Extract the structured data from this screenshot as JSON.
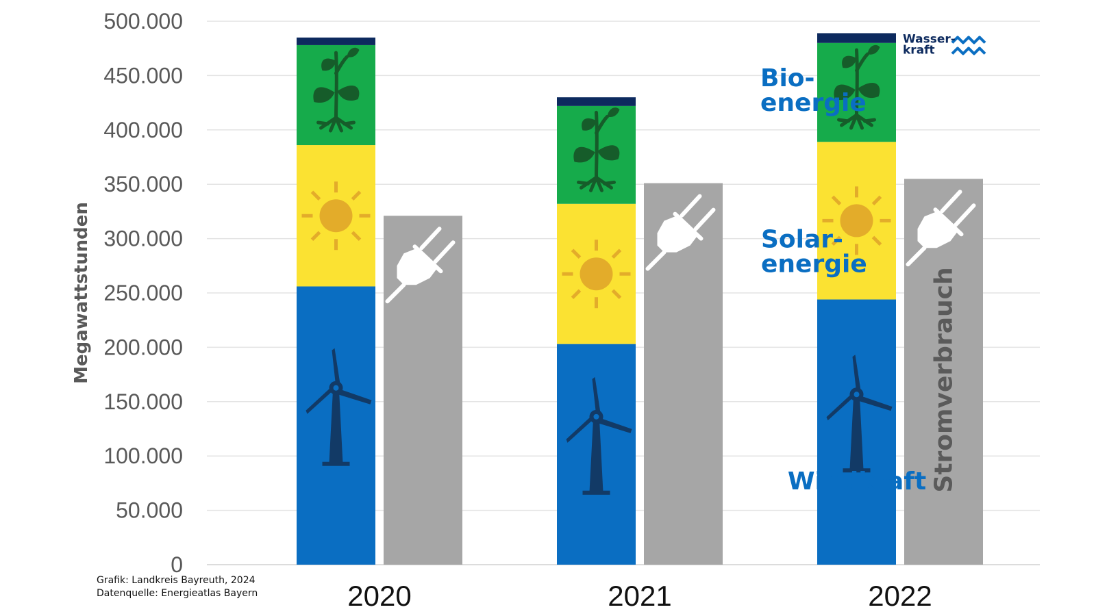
{
  "chart_data": {
    "type": "bar",
    "categories": [
      "2020",
      "2021",
      "2022"
    ],
    "ylabel": "Megawattstunden",
    "ylim": [
      0,
      500000
    ],
    "yticks": [
      0,
      50000,
      100000,
      150000,
      200000,
      250000,
      300000,
      350000,
      400000,
      450000,
      500000
    ],
    "ytick_labels": [
      "0",
      "50.000",
      "100.000",
      "150.000",
      "200.000",
      "250.000",
      "300.000",
      "350.000",
      "400.000",
      "450.000",
      "500.000"
    ],
    "grid": true,
    "stacked_series": [
      {
        "name": "Windkraft",
        "label_lines": [
          "Windkraft"
        ],
        "color": "#0a6ec2",
        "label_color": "#0a6ec2",
        "icon": "wind-turbine-icon",
        "values": [
          256000,
          203000,
          244000
        ]
      },
      {
        "name": "Solarenergie",
        "label_lines": [
          "Solar-",
          "energie"
        ],
        "color": "#fbe232",
        "label_color": "#0a6ec2",
        "icon": "sun-icon",
        "values": [
          130000,
          129000,
          145000
        ]
      },
      {
        "name": "Bioenergie",
        "label_lines": [
          "Bio-",
          "energie"
        ],
        "color": "#16ab4b",
        "label_color": "#0a6ec2",
        "icon": "plant-icon",
        "values": [
          92000,
          90000,
          91000
        ]
      },
      {
        "name": "Wasserkraft",
        "label_lines": [
          "Wasser-",
          "kraft"
        ],
        "color": "#0d2a5e",
        "label_color": "#0d2a5e",
        "icon": "water-waves-icon",
        "values": [
          7000,
          8000,
          9000
        ]
      }
    ],
    "consumption_series": {
      "name": "Stromverbrauch",
      "color": "#a6a6a6",
      "icon": "power-plug-icon",
      "values": [
        321000,
        351000,
        355000
      ]
    }
  },
  "source": {
    "line1": "Grafik: Landkreis Bayreuth, 2024",
    "line2": "Datenquelle: Energieatlas Bayern"
  }
}
